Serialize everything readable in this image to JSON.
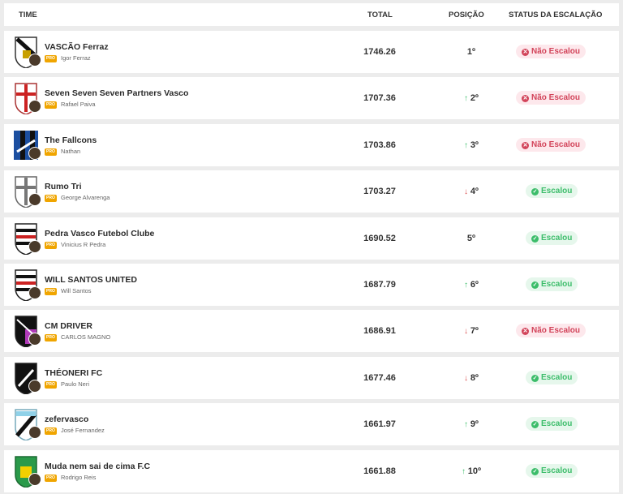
{
  "header": {
    "time": "TIME",
    "total": "TOTAL",
    "position": "POSIÇÃO",
    "status": "STATUS DA ESCALAÇÃO"
  },
  "pro_label": "PRO",
  "rows": [
    {
      "name": "VASCÃO Ferraz",
      "owner": "Igor Ferraz",
      "total": "1746.26",
      "pos": "1º",
      "trend": "none",
      "status": "Não Escalou",
      "escalou": false
    },
    {
      "name": "Seven Seven Seven Partners Vasco",
      "owner": "Rafael Paiva",
      "total": "1707.36",
      "pos": "2º",
      "trend": "up",
      "status": "Não Escalou",
      "escalou": false
    },
    {
      "name": "The Fallcons",
      "owner": "Nathan",
      "total": "1703.86",
      "pos": "3º",
      "trend": "up",
      "status": "Não Escalou",
      "escalou": false
    },
    {
      "name": "Rumo Tri",
      "owner": "George Alvarenga",
      "total": "1703.27",
      "pos": "4º",
      "trend": "down",
      "status": "Escalou",
      "escalou": true
    },
    {
      "name": "Pedra Vasco Futebol Clube",
      "owner": "Vinicius R Pedra",
      "total": "1690.52",
      "pos": "5º",
      "trend": "none",
      "status": "Escalou",
      "escalou": true
    },
    {
      "name": "WILL SANTOS UNITED",
      "owner": "Will Santos",
      "total": "1687.79",
      "pos": "6º",
      "trend": "up",
      "status": "Escalou",
      "escalou": true
    },
    {
      "name": "CM DRIVER",
      "owner": "CARLOS MAGNO",
      "total": "1686.91",
      "pos": "7º",
      "trend": "down",
      "status": "Não Escalou",
      "escalou": false
    },
    {
      "name": "THÉONERI FC",
      "owner": "Paulo Neri",
      "total": "1677.46",
      "pos": "8º",
      "trend": "down",
      "status": "Escalou",
      "escalou": true
    },
    {
      "name": "zefervasco",
      "owner": "José Fernandez",
      "total": "1661.97",
      "pos": "9º",
      "trend": "up",
      "status": "Escalou",
      "escalou": true
    },
    {
      "name": "Muda nem sai de cima F.C",
      "owner": "Rodrigo Reis",
      "total": "1661.88",
      "pos": "10º",
      "trend": "up",
      "status": "Escalou",
      "escalou": true
    }
  ],
  "crests": [
    "shield-vasco",
    "shield-cross-red",
    "shield-blue-black",
    "shield-cross-gray",
    "shield-stripes-red",
    "shield-stripes-red",
    "shield-purple",
    "shield-black",
    "shield-lightblue",
    "shield-green"
  ],
  "colors": {
    "escalou": "#3cbd6a",
    "nao_escalou": "#d2445a",
    "pro": "#f0a500",
    "trend_up": "#3cbd6a",
    "trend_down": "#d94a4a"
  }
}
